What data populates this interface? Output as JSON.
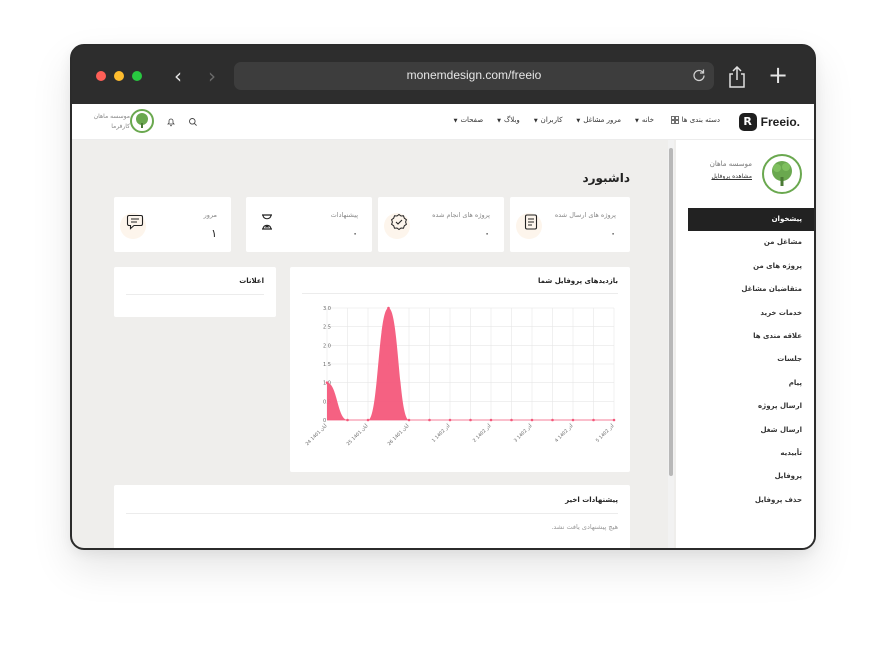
{
  "browser": {
    "url": "monemdesign.com/freeio",
    "back_glyph": "‹",
    "forward_glyph": "›",
    "new_tab_glyph": "+",
    "icons": [
      "reload-icon",
      "share-icon"
    ]
  },
  "header": {
    "logo_mark": "R",
    "logo_text": "Freeio.",
    "categories_label": "دسته بندی ها",
    "menu": [
      {
        "label": "خانه"
      },
      {
        "label": "مرور مشاغل"
      },
      {
        "label": "کاربران"
      },
      {
        "label": "وبلاگ"
      },
      {
        "label": "صفحات"
      }
    ],
    "user_name": "موسسه ماهان",
    "user_role": "کارفرما"
  },
  "sidebar": {
    "name": "موسسه ماهان",
    "view_profile": "مشاهده پروفایل",
    "items": [
      {
        "label": "پیشخوان",
        "active": true
      },
      {
        "label": "مشاغل من"
      },
      {
        "label": "پروژه های من"
      },
      {
        "label": "متقاضیان مشاغل"
      },
      {
        "label": "خدمات خرید"
      },
      {
        "label": "علاقه مندی ها"
      },
      {
        "label": "جلسات"
      },
      {
        "label": "پیام"
      },
      {
        "label": "ارسال پروژه"
      },
      {
        "label": "ارسال شغل"
      },
      {
        "label": "تأییدیه"
      },
      {
        "label": "پروفایل"
      },
      {
        "label": "حذف پروفایل"
      }
    ]
  },
  "dashboard": {
    "title": "داشبورد",
    "stats": [
      {
        "label": "پروژه های ارسال شده",
        "value": "۰",
        "icon": "document-icon"
      },
      {
        "label": "پروژه های انجام شده",
        "value": "۰",
        "icon": "check-badge-icon"
      },
      {
        "label": "پیشنهادات",
        "value": "۰",
        "icon": "hourglass-icon"
      },
      {
        "label": "مرور",
        "value": "۱",
        "icon": "chat-icon"
      }
    ],
    "chart_title": "بازدیدهای پروفایل شما",
    "notifications_title": "اعلانات",
    "recent_title": "پیشنهادات اخیر",
    "recent_empty": "هیچ پیشنهادی یافت نشد."
  },
  "chart_data": {
    "type": "area",
    "title": "بازدیدهای پروفایل شما",
    "x": [
      "24 آبان 1401",
      "",
      "25 آبان 1401",
      "",
      "26 آبان 1401",
      "",
      "1 آذر 1402",
      "",
      "2 آذر 1402",
      "",
      "3 آذر 1402",
      "",
      "4 آذر 1402",
      "",
      "5 آذر 1402"
    ],
    "y": [
      1,
      0,
      0,
      3,
      0,
      0,
      0,
      0,
      0,
      0,
      0,
      0,
      0,
      0,
      0
    ],
    "ylim": [
      0,
      3
    ],
    "yticks": [
      "0",
      "0.5",
      "1.0",
      "1.5",
      "2.0",
      "2.5",
      "3.0"
    ],
    "grid": true,
    "color": "#f4587b"
  },
  "colors": {
    "accent": "#f4587b",
    "sidebar_active": "#222222",
    "brand_green": "#6aa84f",
    "page_bg": "#efeeec"
  }
}
